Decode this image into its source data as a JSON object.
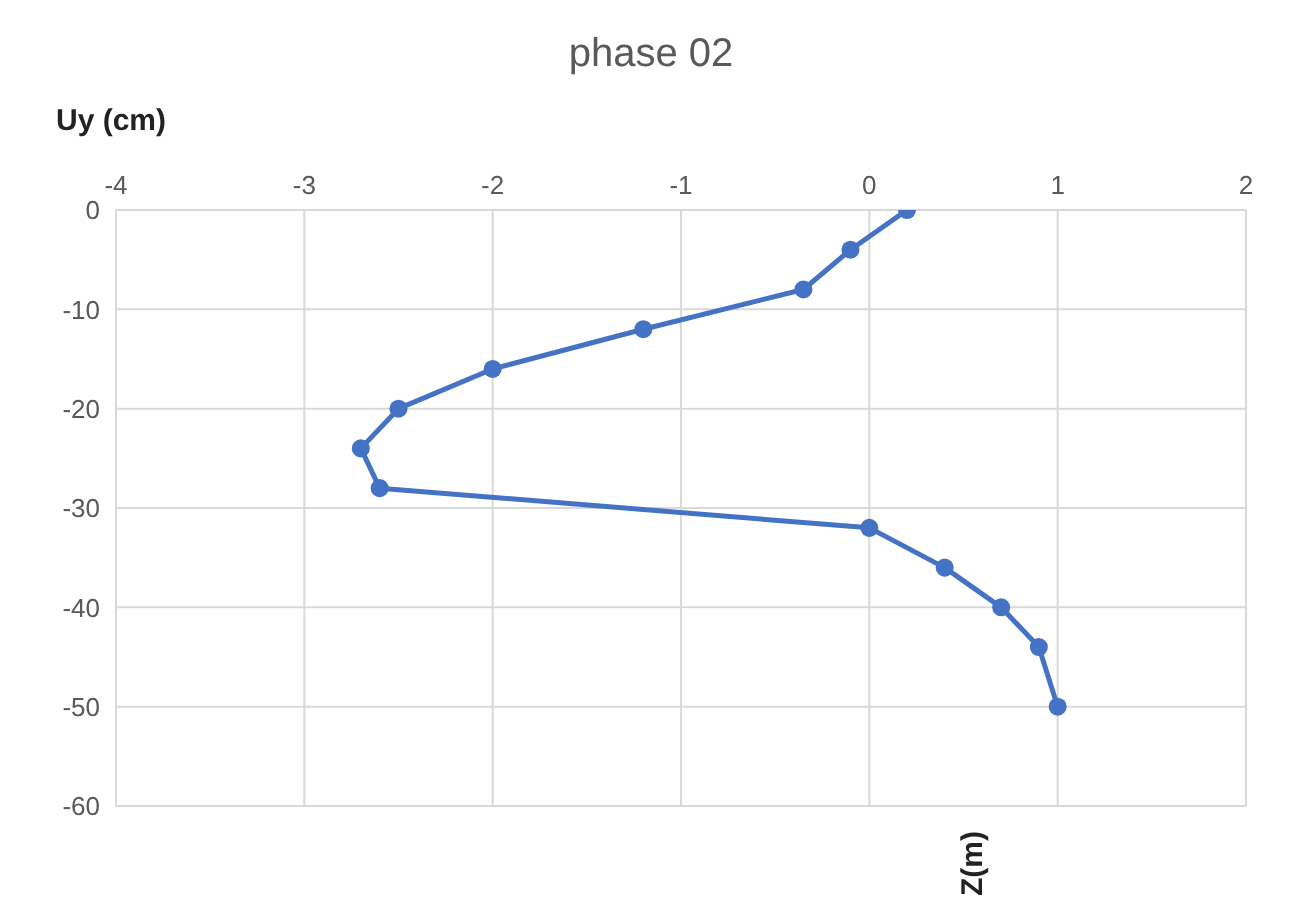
{
  "chart_data": {
    "type": "line",
    "title": "phase 02",
    "xlabel": "Uy (cm)",
    "ylabel": "Z(m)",
    "series": [
      {
        "color": "#4472c4",
        "x": [
          0.2,
          -0.1,
          -0.35,
          -1.2,
          -2,
          -2.5,
          -2.7,
          -2.6,
          0,
          0.4,
          0.7,
          0.9,
          1
        ],
        "values": [
          0,
          -4,
          -8,
          -12,
          -16,
          -20,
          -24,
          -28,
          -32,
          -36,
          -40,
          -44,
          -50
        ]
      }
    ],
    "xlim": [
      -4,
      2
    ],
    "xticks": [
      -4,
      -3,
      -2,
      -1,
      0,
      1,
      2
    ],
    "ylim": [
      -60,
      0
    ],
    "yticks": [
      -60,
      -50,
      -40,
      -30,
      -20,
      -10,
      0
    ],
    "grid": true,
    "marker": "circle",
    "legend": false
  }
}
